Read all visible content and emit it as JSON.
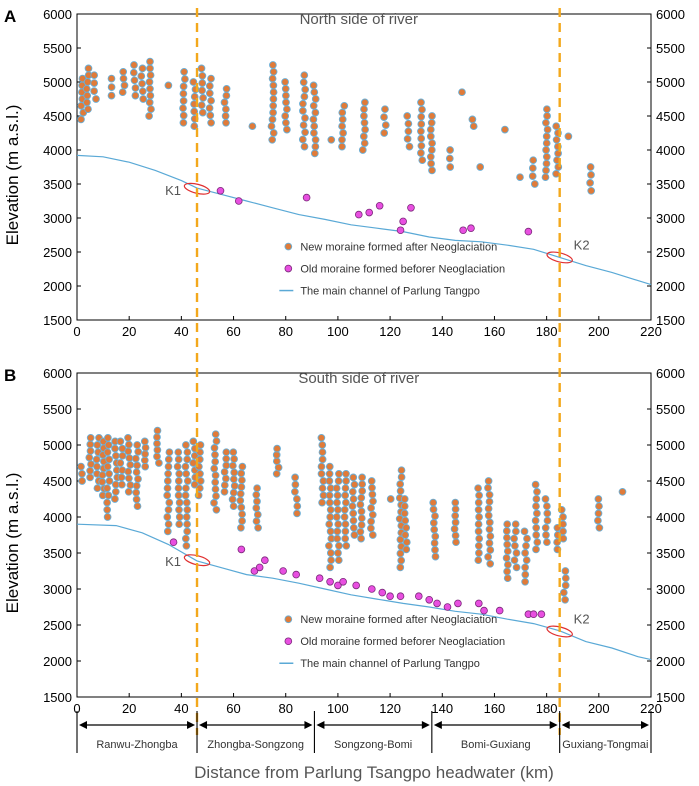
{
  "figure": {
    "x_axis_label": "Distance from Parlung Tsangpo headwater (km)",
    "y_axis_label": "Elevation (m a.s.l.)",
    "sections": [
      {
        "label": "Ranwu-Zhongba",
        "from": 0,
        "to": 46
      },
      {
        "label": "Zhongba-Songzong",
        "from": 46,
        "to": 91
      },
      {
        "label": "Songzong-Bomi",
        "from": 91,
        "to": 136
      },
      {
        "label": "Bomi-Guxiang",
        "from": 136,
        "to": 185
      },
      {
        "label": "Guxiang-Tongmai",
        "from": 185,
        "to": 220
      }
    ],
    "knickpoint_lines_km": [
      46,
      185
    ],
    "colors": {
      "new_moraine": "#e07b39",
      "new_moraine_edge": "#6aaed6",
      "old_moraine": "#e84fe0",
      "channel": "#5aa9d6",
      "dash": "#f3a81c",
      "knick": "#e03030"
    }
  },
  "chart_data": [
    {
      "panel": "A",
      "title": "North side of river",
      "type": "scatter",
      "xlim": [
        0,
        220
      ],
      "ylim": [
        1500,
        6000
      ],
      "xticks": [
        0,
        20,
        40,
        60,
        80,
        100,
        120,
        140,
        160,
        180,
        200,
        220
      ],
      "yticks": [
        1500,
        2000,
        2500,
        3000,
        3500,
        4000,
        4500,
        5000,
        5500,
        6000
      ],
      "legend": {
        "new": "New moraine formed after Neoglaciation",
        "old": "Old moraine formed beforer Neoglaciation",
        "channel": "The main channel of Parlung Tangpo"
      },
      "new_moraine_columns": [
        {
          "x": 2,
          "y_min": 4450,
          "y_max": 5050
        },
        {
          "x": 4,
          "y_min": 4600,
          "y_max": 5200
        },
        {
          "x": 7,
          "y_min": 4750,
          "y_max": 5100
        },
        {
          "x": 13,
          "y_min": 4800,
          "y_max": 5050
        },
        {
          "x": 18,
          "y_min": 4850,
          "y_max": 5150
        },
        {
          "x": 22,
          "y_min": 4800,
          "y_max": 5250
        },
        {
          "x": 25,
          "y_min": 4750,
          "y_max": 5200
        },
        {
          "x": 28,
          "y_min": 4500,
          "y_max": 5300
        },
        {
          "x": 35,
          "y_min": 4950,
          "y_max": 5000
        },
        {
          "x": 41,
          "y_min": 4400,
          "y_max": 5150
        },
        {
          "x": 45,
          "y_min": 4350,
          "y_max": 5000
        },
        {
          "x": 48,
          "y_min": 4550,
          "y_max": 5200
        },
        {
          "x": 51,
          "y_min": 4400,
          "y_max": 5050
        },
        {
          "x": 57,
          "y_min": 4400,
          "y_max": 4900
        },
        {
          "x": 67,
          "y_min": 4350,
          "y_max": 4350
        },
        {
          "x": 75,
          "y_min": 4150,
          "y_max": 5250
        },
        {
          "x": 80,
          "y_min": 4300,
          "y_max": 5000
        },
        {
          "x": 87,
          "y_min": 4050,
          "y_max": 5100
        },
        {
          "x": 91,
          "y_min": 3950,
          "y_max": 4950
        },
        {
          "x": 97,
          "y_min": 4150,
          "y_max": 4150
        },
        {
          "x": 102,
          "y_min": 4050,
          "y_max": 4650
        },
        {
          "x": 110,
          "y_min": 4000,
          "y_max": 4700
        },
        {
          "x": 118,
          "y_min": 4250,
          "y_max": 4600
        },
        {
          "x": 127,
          "y_min": 4050,
          "y_max": 4500
        },
        {
          "x": 132,
          "y_min": 3850,
          "y_max": 4700
        },
        {
          "x": 136,
          "y_min": 3700,
          "y_max": 4500
        },
        {
          "x": 143,
          "y_min": 3750,
          "y_max": 4000
        },
        {
          "x": 148,
          "y_min": 4850,
          "y_max": 4850
        },
        {
          "x": 152,
          "y_min": 4350,
          "y_max": 4450
        },
        {
          "x": 155,
          "y_min": 3750,
          "y_max": 3750
        },
        {
          "x": 164,
          "y_min": 4300,
          "y_max": 4300
        },
        {
          "x": 170,
          "y_min": 3600,
          "y_max": 3600
        },
        {
          "x": 175,
          "y_min": 3500,
          "y_max": 3850
        },
        {
          "x": 180,
          "y_min": 3600,
          "y_max": 4600
        },
        {
          "x": 184,
          "y_min": 3650,
          "y_max": 4350
        },
        {
          "x": 188,
          "y_min": 4200,
          "y_max": 4200
        },
        {
          "x": 197,
          "y_min": 3400,
          "y_max": 3750
        }
      ],
      "old_moraine_points": [
        [
          55,
          3400
        ],
        [
          62,
          3250
        ],
        [
          88,
          3300
        ],
        [
          108,
          3050
        ],
        [
          112,
          3080
        ],
        [
          116,
          3180
        ],
        [
          125,
          2950
        ],
        [
          128,
          3150
        ],
        [
          124,
          2820
        ],
        [
          148,
          2820
        ],
        [
          151,
          2850
        ],
        [
          173,
          2800
        ]
      ],
      "channel": [
        [
          0,
          3920
        ],
        [
          10,
          3900
        ],
        [
          20,
          3820
        ],
        [
          30,
          3700
        ],
        [
          40,
          3550
        ],
        [
          46,
          3440
        ],
        [
          55,
          3350
        ],
        [
          65,
          3250
        ],
        [
          75,
          3150
        ],
        [
          85,
          3050
        ],
        [
          95,
          2980
        ],
        [
          105,
          2900
        ],
        [
          115,
          2850
        ],
        [
          125,
          2800
        ],
        [
          135,
          2720
        ],
        [
          145,
          2670
        ],
        [
          155,
          2650
        ],
        [
          165,
          2600
        ],
        [
          175,
          2540
        ],
        [
          185,
          2420
        ],
        [
          195,
          2300
        ],
        [
          205,
          2200
        ],
        [
          215,
          2080
        ],
        [
          220,
          2020
        ]
      ],
      "knickpoints": [
        {
          "label": "K1",
          "x": 46,
          "y": 3430
        },
        {
          "label": "K2",
          "x": 185,
          "y": 2420
        }
      ]
    },
    {
      "panel": "B",
      "title": "South side of river",
      "type": "scatter",
      "xlim": [
        0,
        220
      ],
      "ylim": [
        1500,
        6000
      ],
      "xticks": [
        0,
        20,
        40,
        60,
        80,
        100,
        120,
        140,
        160,
        180,
        200,
        220
      ],
      "yticks": [
        1500,
        2000,
        2500,
        3000,
        3500,
        4000,
        4500,
        5000,
        5500,
        6000
      ],
      "legend": {
        "new": "New moraine formed after Neoglaciation",
        "old": "Old moraine formed beforer Neoglaciation",
        "channel": "The main channel of Parlung Tangpo"
      },
      "new_moraine_columns": [
        {
          "x": 2,
          "y_min": 4500,
          "y_max": 4700
        },
        {
          "x": 5,
          "y_min": 4550,
          "y_max": 5100
        },
        {
          "x": 8,
          "y_min": 4400,
          "y_max": 5100
        },
        {
          "x": 10,
          "y_min": 4300,
          "y_max": 5050
        },
        {
          "x": 12,
          "y_min": 4000,
          "y_max": 5100
        },
        {
          "x": 15,
          "y_min": 4250,
          "y_max": 5050
        },
        {
          "x": 17,
          "y_min": 4450,
          "y_max": 5050
        },
        {
          "x": 20,
          "y_min": 4350,
          "y_max": 5100
        },
        {
          "x": 23,
          "y_min": 4150,
          "y_max": 5000
        },
        {
          "x": 26,
          "y_min": 4700,
          "y_max": 5050
        },
        {
          "x": 31,
          "y_min": 4750,
          "y_max": 5200
        },
        {
          "x": 35,
          "y_min": 3800,
          "y_max": 4900
        },
        {
          "x": 39,
          "y_min": 3900,
          "y_max": 4900
        },
        {
          "x": 42,
          "y_min": 3600,
          "y_max": 5000
        },
        {
          "x": 45,
          "y_min": 4450,
          "y_max": 5050
        },
        {
          "x": 47,
          "y_min": 4300,
          "y_max": 5000
        },
        {
          "x": 53,
          "y_min": 4100,
          "y_max": 5150
        },
        {
          "x": 57,
          "y_min": 4350,
          "y_max": 4900
        },
        {
          "x": 60,
          "y_min": 4150,
          "y_max": 4900
        },
        {
          "x": 63,
          "y_min": 3850,
          "y_max": 4700
        },
        {
          "x": 69,
          "y_min": 3850,
          "y_max": 4400
        },
        {
          "x": 77,
          "y_min": 4600,
          "y_max": 4950
        },
        {
          "x": 84,
          "y_min": 4050,
          "y_max": 4550
        },
        {
          "x": 94,
          "y_min": 4200,
          "y_max": 5100
        },
        {
          "x": 97,
          "y_min": 3300,
          "y_max": 4700
        },
        {
          "x": 100,
          "y_min": 3400,
          "y_max": 4600
        },
        {
          "x": 103,
          "y_min": 3600,
          "y_max": 4600
        },
        {
          "x": 106,
          "y_min": 3750,
          "y_max": 4550
        },
        {
          "x": 109,
          "y_min": 3700,
          "y_max": 4550
        },
        {
          "x": 113,
          "y_min": 3750,
          "y_max": 4500
        },
        {
          "x": 120,
          "y_min": 4250,
          "y_max": 4250
        },
        {
          "x": 124,
          "y_min": 3300,
          "y_max": 4650
        },
        {
          "x": 126,
          "y_min": 3550,
          "y_max": 4250
        },
        {
          "x": 137,
          "y_min": 3450,
          "y_max": 4200
        },
        {
          "x": 145,
          "y_min": 3650,
          "y_max": 4200
        },
        {
          "x": 154,
          "y_min": 3400,
          "y_max": 4400
        },
        {
          "x": 158,
          "y_min": 3350,
          "y_max": 4500
        },
        {
          "x": 165,
          "y_min": 3150,
          "y_max": 3900
        },
        {
          "x": 168,
          "y_min": 3300,
          "y_max": 3900
        },
        {
          "x": 172,
          "y_min": 3100,
          "y_max": 3800
        },
        {
          "x": 176,
          "y_min": 3550,
          "y_max": 4450
        },
        {
          "x": 180,
          "y_min": 3650,
          "y_max": 4250
        },
        {
          "x": 184,
          "y_min": 3550,
          "y_max": 3850
        },
        {
          "x": 186,
          "y_min": 3700,
          "y_max": 4100
        },
        {
          "x": 187,
          "y_min": 2850,
          "y_max": 3250
        },
        {
          "x": 200,
          "y_min": 3850,
          "y_max": 4250
        },
        {
          "x": 209,
          "y_min": 4350,
          "y_max": 4350
        }
      ],
      "old_moraine_points": [
        [
          37,
          3650
        ],
        [
          63,
          3550
        ],
        [
          68,
          3250
        ],
        [
          70,
          3300
        ],
        [
          72,
          3400
        ],
        [
          79,
          3250
        ],
        [
          84,
          3200
        ],
        [
          93,
          3150
        ],
        [
          97,
          3100
        ],
        [
          100,
          3050
        ],
        [
          102,
          3100
        ],
        [
          107,
          3050
        ],
        [
          113,
          3000
        ],
        [
          117,
          2950
        ],
        [
          120,
          2900
        ],
        [
          124,
          2900
        ],
        [
          131,
          2900
        ],
        [
          135,
          2850
        ],
        [
          138,
          2800
        ],
        [
          142,
          2750
        ],
        [
          146,
          2800
        ],
        [
          154,
          2800
        ],
        [
          156,
          2700
        ],
        [
          162,
          2700
        ],
        [
          173,
          2650
        ],
        [
          175,
          2650
        ],
        [
          178,
          2650
        ]
      ],
      "channel": [
        [
          0,
          3900
        ],
        [
          15,
          3880
        ],
        [
          25,
          3780
        ],
        [
          35,
          3620
        ],
        [
          46,
          3390
        ],
        [
          55,
          3300
        ],
        [
          65,
          3200
        ],
        [
          75,
          3150
        ],
        [
          85,
          3080
        ],
        [
          95,
          3000
        ],
        [
          105,
          2920
        ],
        [
          115,
          2860
        ],
        [
          125,
          2800
        ],
        [
          135,
          2750
        ],
        [
          145,
          2690
        ],
        [
          155,
          2650
        ],
        [
          165,
          2580
        ],
        [
          175,
          2520
        ],
        [
          185,
          2420
        ],
        [
          195,
          2270
        ],
        [
          205,
          2180
        ],
        [
          215,
          2060
        ],
        [
          220,
          2020
        ]
      ],
      "knickpoints": [
        {
          "label": "K1",
          "x": 46,
          "y": 3400
        },
        {
          "label": "K2",
          "x": 185,
          "y": 2410
        }
      ]
    }
  ]
}
